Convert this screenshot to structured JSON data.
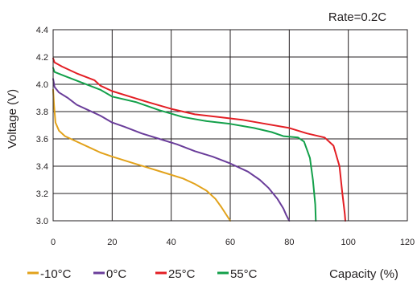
{
  "chart_data": {
    "type": "line",
    "title": "",
    "annotation": "Rate=0.2C",
    "xlabel": "Capacity (%)",
    "ylabel": "Voltage (V)",
    "xlim": [
      0,
      120
    ],
    "ylim": [
      3.0,
      4.4
    ],
    "x_ticks": [
      "0",
      "20",
      "40",
      "60",
      "80",
      "100",
      "120"
    ],
    "y_ticks": [
      "3.0",
      "3.2",
      "3.4",
      "3.6",
      "3.8",
      "4.0",
      "4.2",
      "4.4"
    ],
    "grid": true,
    "legend_position": "bottom-left",
    "series": [
      {
        "name": "-10°C",
        "color": "#e2a21b",
        "points": [
          [
            0,
            3.96
          ],
          [
            0.3,
            3.85
          ],
          [
            0.8,
            3.72
          ],
          [
            2,
            3.66
          ],
          [
            4,
            3.62
          ],
          [
            8,
            3.58
          ],
          [
            12,
            3.54
          ],
          [
            16,
            3.5
          ],
          [
            20,
            3.47
          ],
          [
            26,
            3.43
          ],
          [
            32,
            3.39
          ],
          [
            38,
            3.35
          ],
          [
            44,
            3.31
          ],
          [
            48,
            3.27
          ],
          [
            52,
            3.22
          ],
          [
            55,
            3.16
          ],
          [
            57,
            3.1
          ],
          [
            58.5,
            3.05
          ],
          [
            60,
            3.0
          ]
        ]
      },
      {
        "name": "0°C",
        "color": "#6a3d9a",
        "points": [
          [
            0,
            4.04
          ],
          [
            0.5,
            3.98
          ],
          [
            2,
            3.94
          ],
          [
            5,
            3.9
          ],
          [
            8,
            3.85
          ],
          [
            12,
            3.81
          ],
          [
            16,
            3.77
          ],
          [
            20,
            3.72
          ],
          [
            24,
            3.69
          ],
          [
            30,
            3.64
          ],
          [
            36,
            3.6
          ],
          [
            42,
            3.56
          ],
          [
            48,
            3.51
          ],
          [
            54,
            3.47
          ],
          [
            60,
            3.42
          ],
          [
            66,
            3.36
          ],
          [
            70,
            3.3
          ],
          [
            73,
            3.24
          ],
          [
            76,
            3.16
          ],
          [
            78,
            3.09
          ],
          [
            79,
            3.04
          ],
          [
            80,
            3.0
          ]
        ]
      },
      {
        "name": "25°C",
        "color": "#e31e24",
        "points": [
          [
            0,
            4.19
          ],
          [
            0.5,
            4.16
          ],
          [
            3,
            4.13
          ],
          [
            8,
            4.08
          ],
          [
            14,
            4.03
          ],
          [
            16,
            3.99
          ],
          [
            20,
            3.95
          ],
          [
            26,
            3.91
          ],
          [
            32,
            3.87
          ],
          [
            40,
            3.82
          ],
          [
            48,
            3.78
          ],
          [
            56,
            3.76
          ],
          [
            64,
            3.74
          ],
          [
            72,
            3.71
          ],
          [
            80,
            3.68
          ],
          [
            86,
            3.64
          ],
          [
            92,
            3.61
          ],
          [
            95,
            3.55
          ],
          [
            97,
            3.4
          ],
          [
            98,
            3.2
          ],
          [
            98.8,
            3.05
          ],
          [
            99,
            3.0
          ]
        ]
      },
      {
        "name": "55°C",
        "color": "#13a04a",
        "points": [
          [
            0,
            4.12
          ],
          [
            0.5,
            4.09
          ],
          [
            4,
            4.06
          ],
          [
            10,
            4.01
          ],
          [
            16,
            3.96
          ],
          [
            20,
            3.91
          ],
          [
            28,
            3.87
          ],
          [
            36,
            3.81
          ],
          [
            44,
            3.76
          ],
          [
            52,
            3.73
          ],
          [
            60,
            3.71
          ],
          [
            68,
            3.68
          ],
          [
            74,
            3.65
          ],
          [
            78,
            3.62
          ],
          [
            83,
            3.61
          ],
          [
            85,
            3.58
          ],
          [
            87,
            3.46
          ],
          [
            88,
            3.3
          ],
          [
            88.8,
            3.12
          ],
          [
            89,
            3.0
          ]
        ]
      }
    ]
  }
}
